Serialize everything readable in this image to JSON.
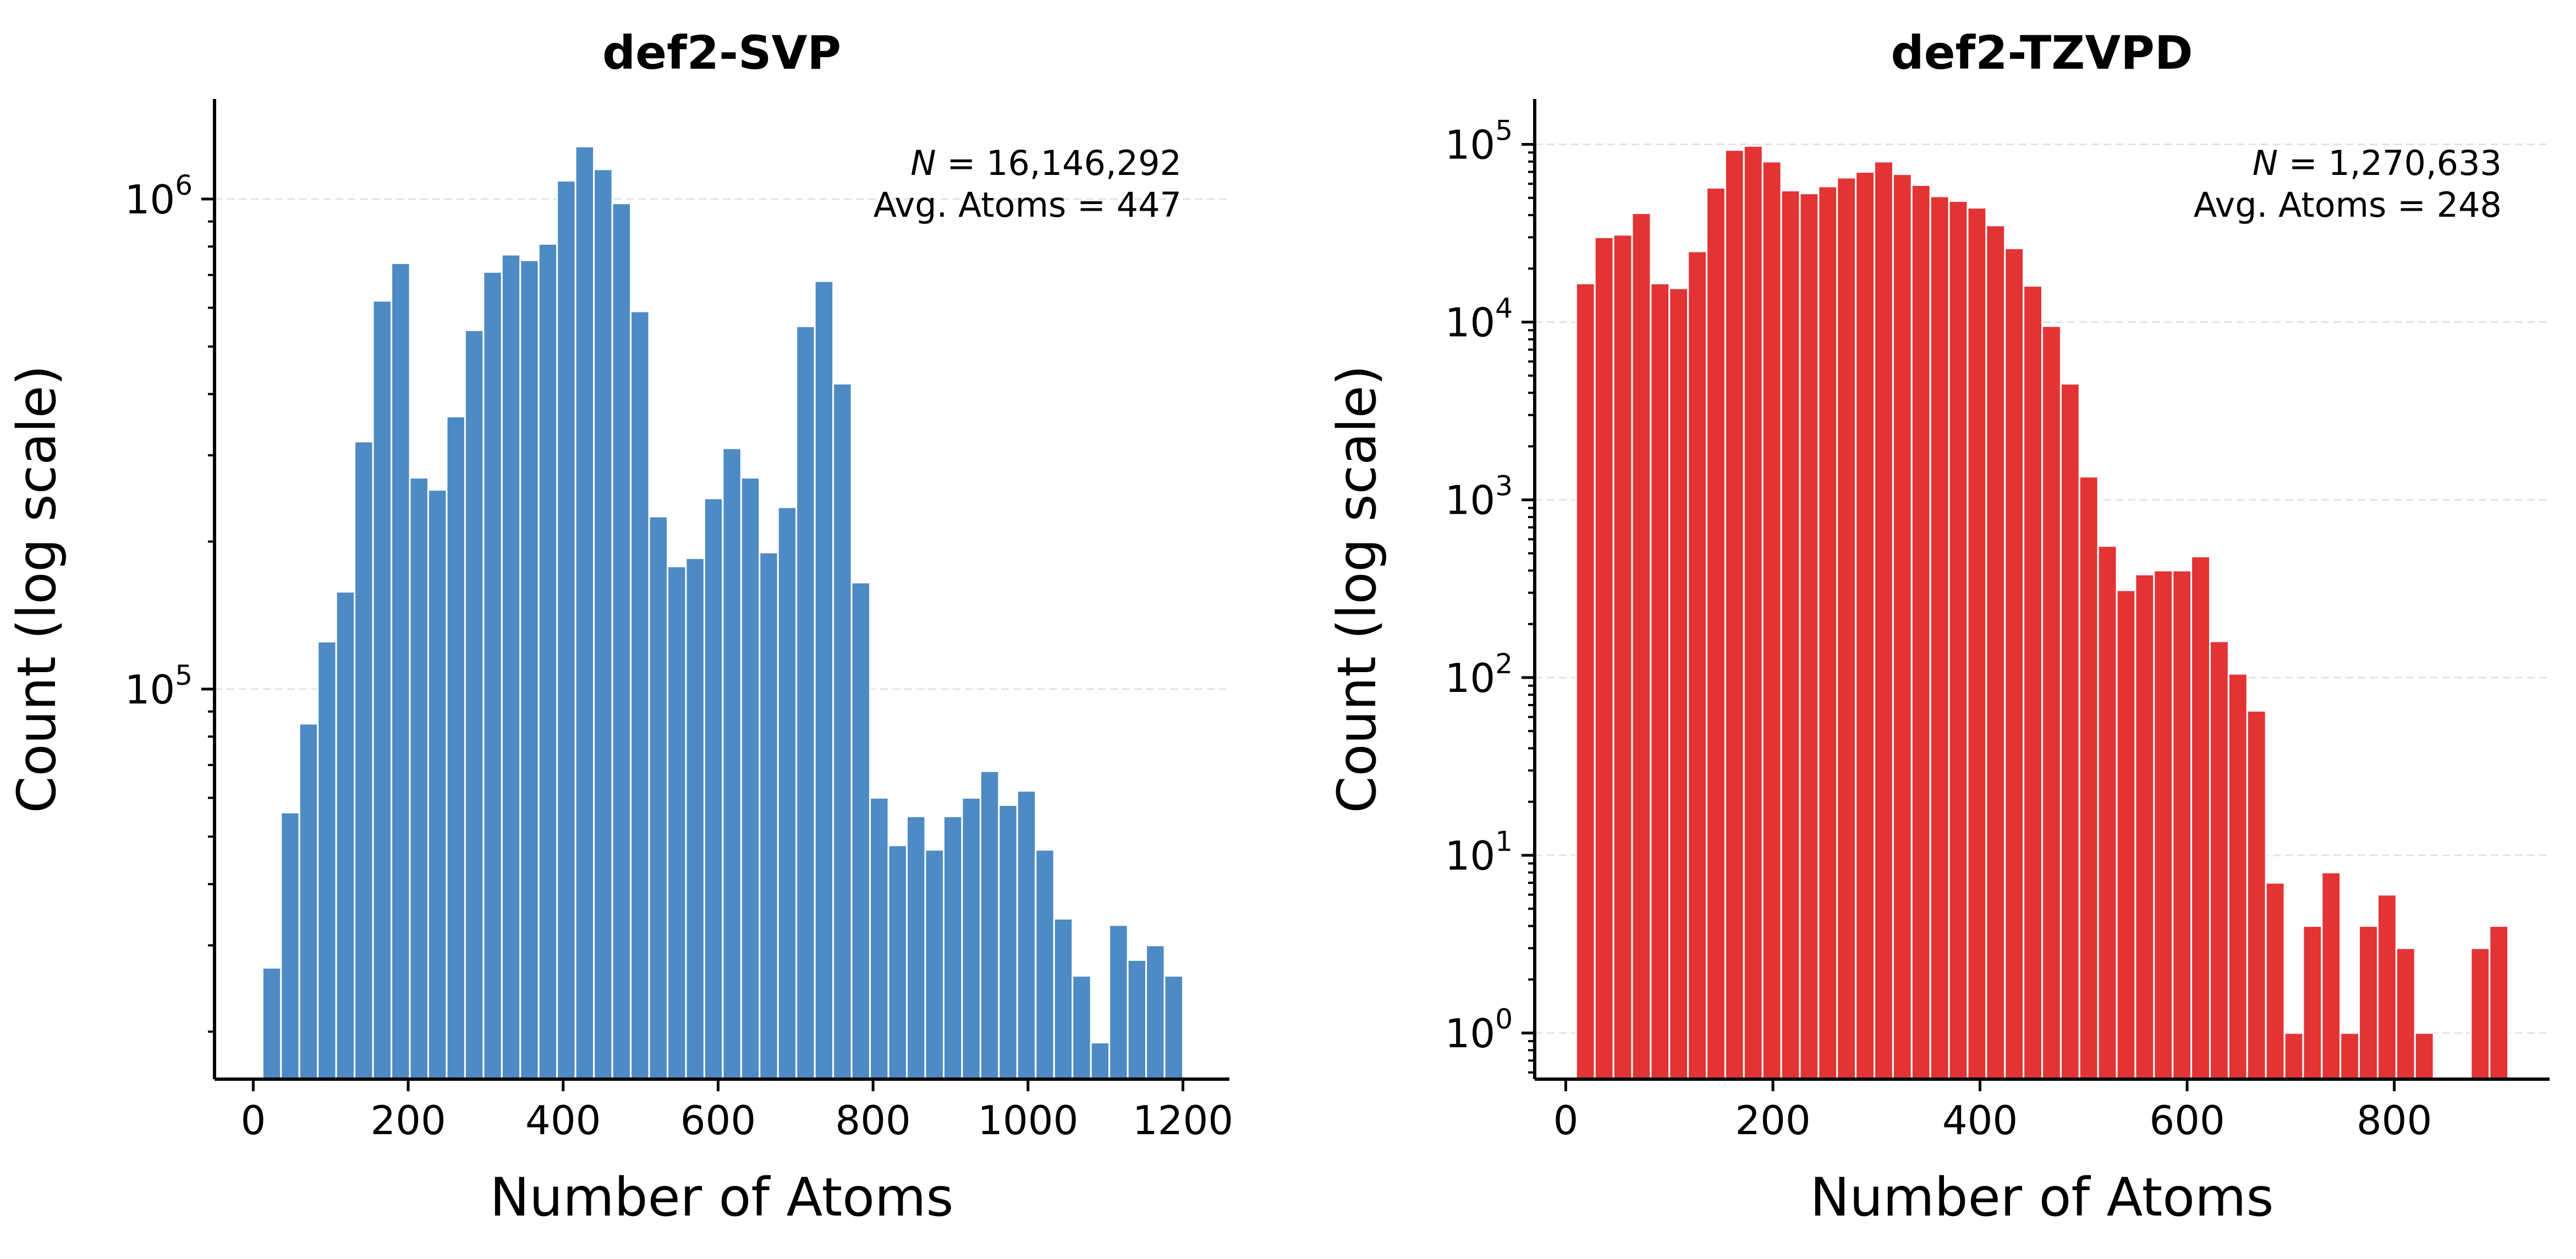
{
  "chart_data": [
    {
      "type": "bar",
      "title": "def2-SVP",
      "xlabel": "Number of Atoms",
      "ylabel": "Count (log scale)",
      "yscale": "log",
      "xlim": [
        -50,
        1260
      ],
      "ylim": [
        16000,
        1600000
      ],
      "grid": true,
      "color": "#4e8ac4",
      "xticks": [
        0,
        200,
        400,
        600,
        800,
        1000,
        1200
      ],
      "yticks": [
        100000,
        1000000
      ],
      "ytick_labels": [
        {
          "base": "10",
          "exp": "5"
        },
        {
          "base": "10",
          "exp": "6"
        }
      ],
      "annotation": {
        "n_label": "N",
        "n_value": " = 16,146,292",
        "avg_label": "Avg. Atoms = 447"
      },
      "bin_start": 12,
      "bin_width": 23.76,
      "values": [
        27000,
        56000,
        85000,
        125000,
        158000,
        320000,
        620000,
        740000,
        270000,
        255000,
        360000,
        540000,
        710000,
        770000,
        750000,
        810000,
        1090000,
        1280000,
        1150000,
        980000,
        590000,
        225000,
        178000,
        185000,
        245000,
        310000,
        270000,
        190000,
        235000,
        550000,
        680000,
        420000,
        165000,
        60000,
        48000,
        55000,
        47000,
        55000,
        60000,
        68000,
        58000,
        62000,
        47000,
        34000,
        26000,
        19000,
        33000,
        28000,
        30000,
        26000
      ]
    },
    {
      "type": "bar",
      "title": "def2-TZVPD",
      "xlabel": "Number of Atoms",
      "ylabel": "Count (log scale)",
      "yscale": "log",
      "xlim": [
        -30,
        950
      ],
      "ylim": [
        0.55,
        180000
      ],
      "grid": true,
      "color": "#e23434",
      "xticks": [
        0,
        200,
        400,
        600,
        800
      ],
      "yticks": [
        1,
        10,
        100,
        1000,
        10000,
        100000
      ],
      "ytick_labels": [
        {
          "base": "10",
          "exp": "0"
        },
        {
          "base": "10",
          "exp": "1"
        },
        {
          "base": "10",
          "exp": "2"
        },
        {
          "base": "10",
          "exp": "3"
        },
        {
          "base": "10",
          "exp": "4"
        },
        {
          "base": "10",
          "exp": "5"
        }
      ],
      "annotation": {
        "n_label": "N",
        "n_value": " = 1,270,633",
        "avg_label": "Avg. Atoms = 248"
      },
      "bin_start": 10,
      "bin_width": 18.0,
      "values": [
        16500,
        30000,
        31000,
        41000,
        16500,
        15500,
        25000,
        57000,
        93000,
        98000,
        80000,
        55000,
        53000,
        58000,
        65000,
        70000,
        80000,
        68000,
        59000,
        51000,
        48000,
        44000,
        35000,
        26000,
        16000,
        9500,
        4500,
        1350,
        550,
        310,
        380,
        400,
        400,
        480,
        160,
        105,
        65,
        7,
        1,
        4,
        8,
        1,
        4,
        6,
        3,
        1,
        0,
        0,
        3,
        4
      ]
    }
  ]
}
